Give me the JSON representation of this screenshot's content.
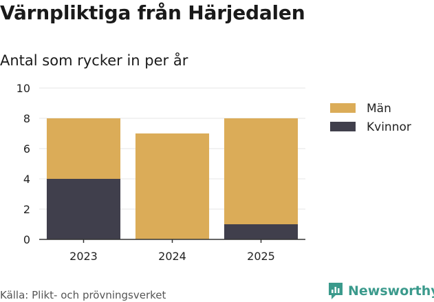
{
  "title": "Värnpliktiga från Härjedalen",
  "subtitle": "Antal som rycker in per år",
  "source": "Källa: Plikt- och prövningsverket",
  "brand": {
    "name": "Newsworthy",
    "icon": "newsworthy-logo-icon"
  },
  "colors": {
    "men": "#dbac58",
    "women": "#403f4c",
    "grid": "#e6e6e6",
    "brand": "#3b9a8c"
  },
  "chart_data": {
    "type": "bar",
    "stacked": true,
    "categories": [
      "2023",
      "2024",
      "2025"
    ],
    "series": [
      {
        "name": "Kvinnor",
        "values": [
          4,
          0,
          1
        ]
      },
      {
        "name": "Män",
        "values": [
          4,
          7,
          7
        ]
      }
    ],
    "ylim": [
      0,
      10
    ],
    "yticks": [
      "0",
      "2",
      "4",
      "6",
      "8",
      "10"
    ],
    "xlabel": "",
    "ylabel": "",
    "grid": true,
    "legend": [
      "Män",
      "Kvinnor"
    ],
    "legend_position": "right"
  }
}
